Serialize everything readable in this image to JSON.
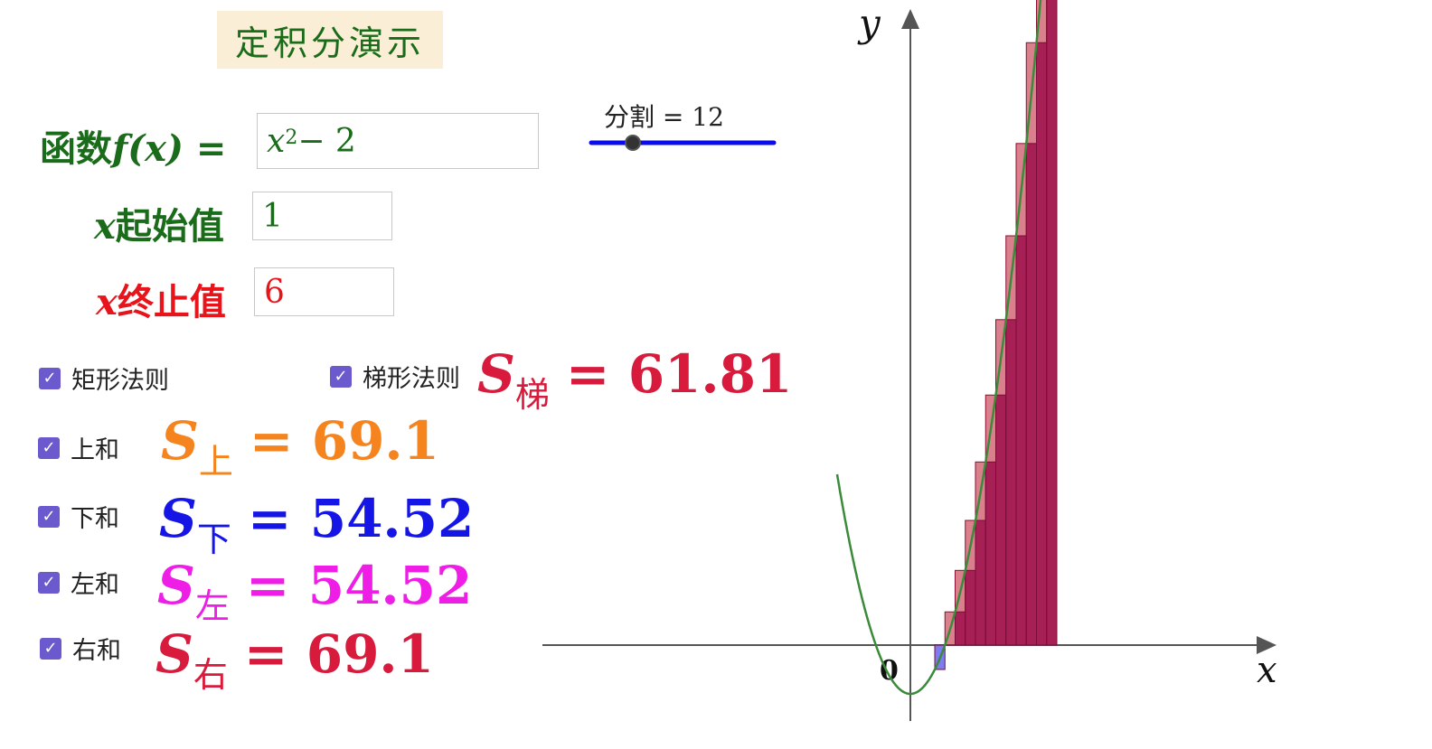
{
  "title": "定积分演示",
  "function": {
    "label_prefix": "函数",
    "label_var": "f(x)",
    "label_eq": "=",
    "value_base": "x",
    "value_exp": "2",
    "value_rest": " − 2"
  },
  "start": {
    "label_var": "x",
    "label_text": "起始值",
    "value": "1"
  },
  "end": {
    "label_var": "x",
    "label_text": "终止值",
    "value": "6"
  },
  "checkboxes": {
    "rect": "矩形法则",
    "trap": "梯形法则",
    "upper": "上和",
    "lower": "下和",
    "left": "左和",
    "right": "右和"
  },
  "sums": {
    "trap": {
      "S": "S",
      "sub": "梯",
      "eq": "=",
      "value": "61.81",
      "color": "#d81b3c"
    },
    "upper": {
      "S": "S",
      "sub": "上",
      "eq": "=",
      "value": "69.1",
      "color": "#f5841f"
    },
    "lower": {
      "S": "S",
      "sub": "下",
      "eq": "=",
      "value": "54.52",
      "color": "#1515e6"
    },
    "left": {
      "S": "S",
      "sub": "左",
      "eq": "=",
      "value": "54.52",
      "color": "#ee1ee6"
    },
    "right": {
      "S": "S",
      "sub": "右",
      "eq": "=",
      "value": "69.1",
      "color": "#d81b3c"
    }
  },
  "slider": {
    "label": "分割 = 12",
    "value": 12,
    "color": "#0a0aee"
  },
  "axes": {
    "x_label": "x",
    "y_label": "y",
    "origin_label": "0"
  },
  "colors": {
    "curve": "#3a8a3a",
    "bars": "#a0144f",
    "green_text": "#1a6b1a",
    "red_text": "#e8141b"
  }
}
